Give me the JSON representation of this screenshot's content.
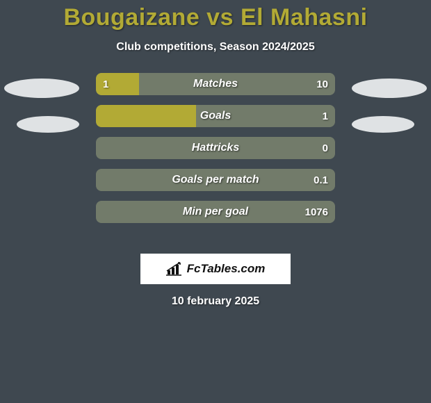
{
  "background_color": "#3f4850",
  "text_color": "#ffffff",
  "header": {
    "title": "Bougaizane vs El Mahasni",
    "title_color": "#b2aa35",
    "title_fontsize": 34,
    "subtitle": "Club competitions, Season 2024/2025",
    "subtitle_fontsize": 16
  },
  "ellipses": {
    "color": "#dfe2e4"
  },
  "stats": {
    "bar_empty_color": "#727b6a",
    "bar_fill_color": "#b2aa35",
    "label_color": "#ffffff",
    "value_color": "#ffffff",
    "rows": [
      {
        "label": "Matches",
        "left_value": "1",
        "right_value": "10",
        "left_fill_pct": 18,
        "right_fill_pct": 0
      },
      {
        "label": "Goals",
        "left_value": "",
        "right_value": "1",
        "left_fill_pct": 42,
        "right_fill_pct": 0
      },
      {
        "label": "Hattricks",
        "left_value": "",
        "right_value": "0",
        "left_fill_pct": 0,
        "right_fill_pct": 0
      },
      {
        "label": "Goals per match",
        "left_value": "",
        "right_value": "0.1",
        "left_fill_pct": 0,
        "right_fill_pct": 0
      },
      {
        "label": "Min per goal",
        "left_value": "",
        "right_value": "1076",
        "left_fill_pct": 0,
        "right_fill_pct": 0
      }
    ]
  },
  "attribution": {
    "text": "FcTables.com",
    "background_color": "#ffffff"
  },
  "date": "10 february 2025"
}
